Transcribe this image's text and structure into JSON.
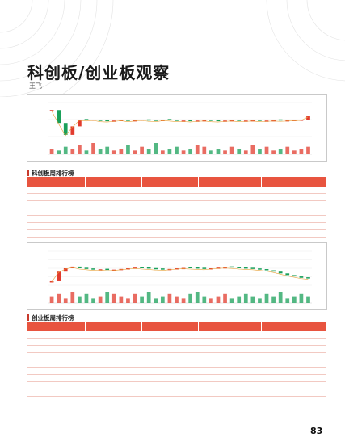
{
  "title": "科创板/创业板观察",
  "author": "王飞",
  "section1": {
    "heading": "科创板周排行榜"
  },
  "section2": {
    "heading": "创业板周排行榜"
  },
  "page_number": "83",
  "colors": {
    "accent": "#e8543f",
    "line": "#c83a2c",
    "up": "#e23b2e",
    "down": "#1aa05a"
  },
  "chart1": {
    "bars": [
      3,
      2,
      4,
      3,
      5,
      2,
      6,
      3,
      4,
      2,
      3,
      5,
      2,
      4,
      3,
      6,
      2,
      3,
      4,
      2,
      3,
      5,
      4,
      2,
      3,
      2,
      4,
      3,
      2,
      5,
      3,
      4,
      2,
      3,
      4,
      2,
      3,
      4
    ],
    "closes": [
      0.78,
      0.4,
      0.05,
      0.3,
      0.5,
      0.48,
      0.5,
      0.46,
      0.45,
      0.47,
      0.49,
      0.46,
      0.48,
      0.5,
      0.47,
      0.46,
      0.49,
      0.48,
      0.46,
      0.47,
      0.45,
      0.47,
      0.48,
      0.46,
      0.45,
      0.47,
      0.48,
      0.46,
      0.47,
      0.48,
      0.46,
      0.47,
      0.48,
      0.47,
      0.48,
      0.49,
      0.5,
      0.6
    ]
  },
  "chart2": {
    "bars": [
      3,
      4,
      2,
      5,
      3,
      4,
      2,
      3,
      5,
      4,
      3,
      2,
      4,
      3,
      5,
      2,
      3,
      4,
      3,
      2,
      4,
      5,
      3,
      2,
      3,
      4,
      2,
      3,
      4,
      3,
      2,
      4,
      3,
      5,
      2,
      3,
      4,
      3
    ],
    "closes": [
      0.12,
      0.4,
      0.5,
      0.55,
      0.5,
      0.48,
      0.46,
      0.47,
      0.45,
      0.46,
      0.48,
      0.5,
      0.52,
      0.5,
      0.49,
      0.47,
      0.46,
      0.48,
      0.5,
      0.51,
      0.5,
      0.49,
      0.48,
      0.5,
      0.52,
      0.53,
      0.52,
      0.5,
      0.49,
      0.48,
      0.46,
      0.44,
      0.4,
      0.35,
      0.3,
      0.26,
      0.22,
      0.2
    ]
  },
  "table_rows": 9
}
